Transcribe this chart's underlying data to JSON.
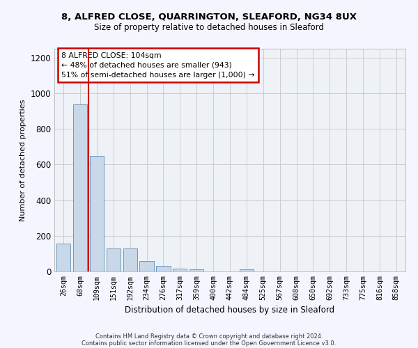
{
  "title1": "8, ALFRED CLOSE, QUARRINGTON, SLEAFORD, NG34 8UX",
  "title2": "Size of property relative to detached houses in Sleaford",
  "xlabel": "Distribution of detached houses by size in Sleaford",
  "ylabel": "Number of detached properties",
  "bar_color": "#c8d8e8",
  "bar_edge_color": "#5b8db8",
  "annotation_line1": "8 ALFRED CLOSE: 104sqm",
  "annotation_line2": "← 48% of detached houses are smaller (943)",
  "annotation_line3": "51% of semi-detached houses are larger (1,000) →",
  "annotation_box_color": "#ffffff",
  "annotation_box_edge_color": "#cc0000",
  "vline_color": "#cc0000",
  "categories": [
    "26sqm",
    "68sqm",
    "109sqm",
    "151sqm",
    "192sqm",
    "234sqm",
    "276sqm",
    "317sqm",
    "359sqm",
    "400sqm",
    "442sqm",
    "484sqm",
    "525sqm",
    "567sqm",
    "608sqm",
    "650sqm",
    "692sqm",
    "733sqm",
    "775sqm",
    "816sqm",
    "858sqm"
  ],
  "values": [
    157,
    937,
    650,
    130,
    130,
    57,
    30,
    15,
    11,
    0,
    0,
    11,
    0,
    0,
    0,
    0,
    0,
    0,
    0,
    0,
    0
  ],
  "ylim": [
    0,
    1250
  ],
  "yticks": [
    0,
    200,
    400,
    600,
    800,
    1000,
    1200
  ],
  "footer_line1": "Contains HM Land Registry data © Crown copyright and database right 2024.",
  "footer_line2": "Contains public sector information licensed under the Open Government Licence v3.0.",
  "grid_color": "#cccccc",
  "bg_color": "#eef2f7",
  "fig_bg_color": "#f5f5ff"
}
